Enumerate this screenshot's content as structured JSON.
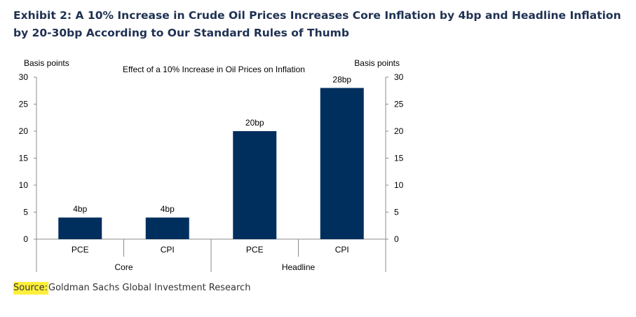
{
  "exhibit": {
    "title": "Exhibit 2: A 10% Increase in Crude Oil Prices Increases Core Inflation by 4bp and Headline Inflation by 20-30bp According to Our Standard Rules of Thumb"
  },
  "source": {
    "label": "Source:",
    "text": "Goldman Sachs Global Investment Research",
    "highlight_color": "#ffef3a"
  },
  "chart_data": {
    "type": "bar",
    "title": "Effect of a 10% Increase  in Oil Prices on Inflation",
    "ylabel_left": "Basis points",
    "ylabel_right": "Basis points",
    "ylim": [
      0,
      30
    ],
    "yticks": [
      0,
      5,
      10,
      15,
      20,
      25,
      30
    ],
    "categories": [
      "PCE",
      "CPI",
      "PCE",
      "CPI"
    ],
    "groups": [
      {
        "label": "Core",
        "categories": [
          "PCE",
          "CPI"
        ]
      },
      {
        "label": "Headline",
        "categories": [
          "PCE",
          "CPI"
        ]
      }
    ],
    "values": [
      4,
      4,
      20,
      28
    ],
    "data_labels": [
      "4bp",
      "4bp",
      "20bp",
      "28bp"
    ],
    "bar_color": "#002f5e",
    "grid": false
  }
}
